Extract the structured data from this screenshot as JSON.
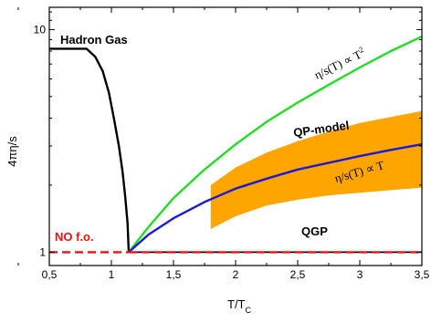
{
  "chart_data": {
    "type": "line",
    "title": "",
    "xlabel": "T/T",
    "xlabel_sub": "C",
    "ylabel": "4πη/s",
    "xlim": [
      0.5,
      3.5
    ],
    "ylim_log10": [
      -0.06,
      1.1
    ],
    "y_scale": "log",
    "grid": false,
    "x_ticks": [
      {
        "v": 0.5,
        "label": "0,5"
      },
      {
        "v": 1.0,
        "label": "1"
      },
      {
        "v": 1.5,
        "label": "1,5"
      },
      {
        "v": 2.0,
        "label": "2"
      },
      {
        "v": 2.5,
        "label": "2,5"
      },
      {
        "v": 3.0,
        "label": "3"
      },
      {
        "v": 3.5,
        "label": "3,5"
      }
    ],
    "y_ticks": [
      {
        "v": 1,
        "label": "1"
      },
      {
        "v": 10,
        "label": "10"
      }
    ],
    "series": [
      {
        "key": "hadron",
        "color": "#000000",
        "dash": false,
        "x": [
          0.5,
          0.8,
          0.87,
          0.93,
          0.98,
          1.02,
          1.06,
          1.09,
          1.11,
          1.13,
          1.14
        ],
        "y": [
          8.2,
          8.2,
          7.55,
          6.5,
          5.2,
          4.0,
          3.0,
          2.3,
          1.8,
          1.35,
          1.0
        ]
      },
      {
        "key": "green",
        "color": "#22dd22",
        "dash": false,
        "x": [
          1.14,
          1.3,
          1.5,
          1.75,
          2.0,
          2.25,
          2.5,
          2.75,
          3.0,
          3.25,
          3.5
        ],
        "y": [
          1.0,
          1.3,
          1.75,
          2.35,
          3.05,
          3.85,
          4.7,
          5.65,
          6.75,
          8.0,
          9.3
        ]
      },
      {
        "key": "blue",
        "color": "#1a1ad9",
        "dash": false,
        "x": [
          1.14,
          1.3,
          1.5,
          1.75,
          2.0,
          2.25,
          2.5,
          2.75,
          3.0,
          3.25,
          3.5
        ],
        "y": [
          1.0,
          1.2,
          1.42,
          1.68,
          1.93,
          2.14,
          2.35,
          2.52,
          2.7,
          2.88,
          3.05
        ]
      },
      {
        "key": "nofo",
        "color": "#ee1111",
        "dash": true,
        "x": [
          0.5,
          1.14
        ],
        "y": [
          1.0,
          1.0
        ]
      },
      {
        "key": "qgp",
        "color": "#000000",
        "dash": false,
        "x": [
          1.14,
          3.5
        ],
        "y": [
          1.0,
          1.0
        ]
      },
      {
        "key": "qgp_red",
        "color": "#ee1111",
        "dash": true,
        "x": [
          1.14,
          3.5
        ],
        "y": [
          1.0,
          1.0
        ]
      }
    ],
    "band": {
      "name": "QP-model",
      "color": "#ffa500",
      "x": [
        1.8,
        2.0,
        2.25,
        2.5,
        2.75,
        3.0,
        3.25,
        3.5
      ],
      "upper": [
        2.0,
        2.4,
        2.8,
        3.15,
        3.48,
        3.8,
        4.05,
        4.3
      ],
      "lower": [
        1.27,
        1.45,
        1.62,
        1.72,
        1.8,
        1.85,
        1.9,
        1.95
      ]
    },
    "annotations": {
      "hadron_gas": "Hadron Gas",
      "qp_model": "QP-model",
      "qgp": "QGP",
      "no_fo": "NO f.o.",
      "eta_t2": "η/s(T) ∝ T",
      "eta_t2_sup": "2",
      "eta_t": "η/s(T) ∝ T"
    }
  }
}
